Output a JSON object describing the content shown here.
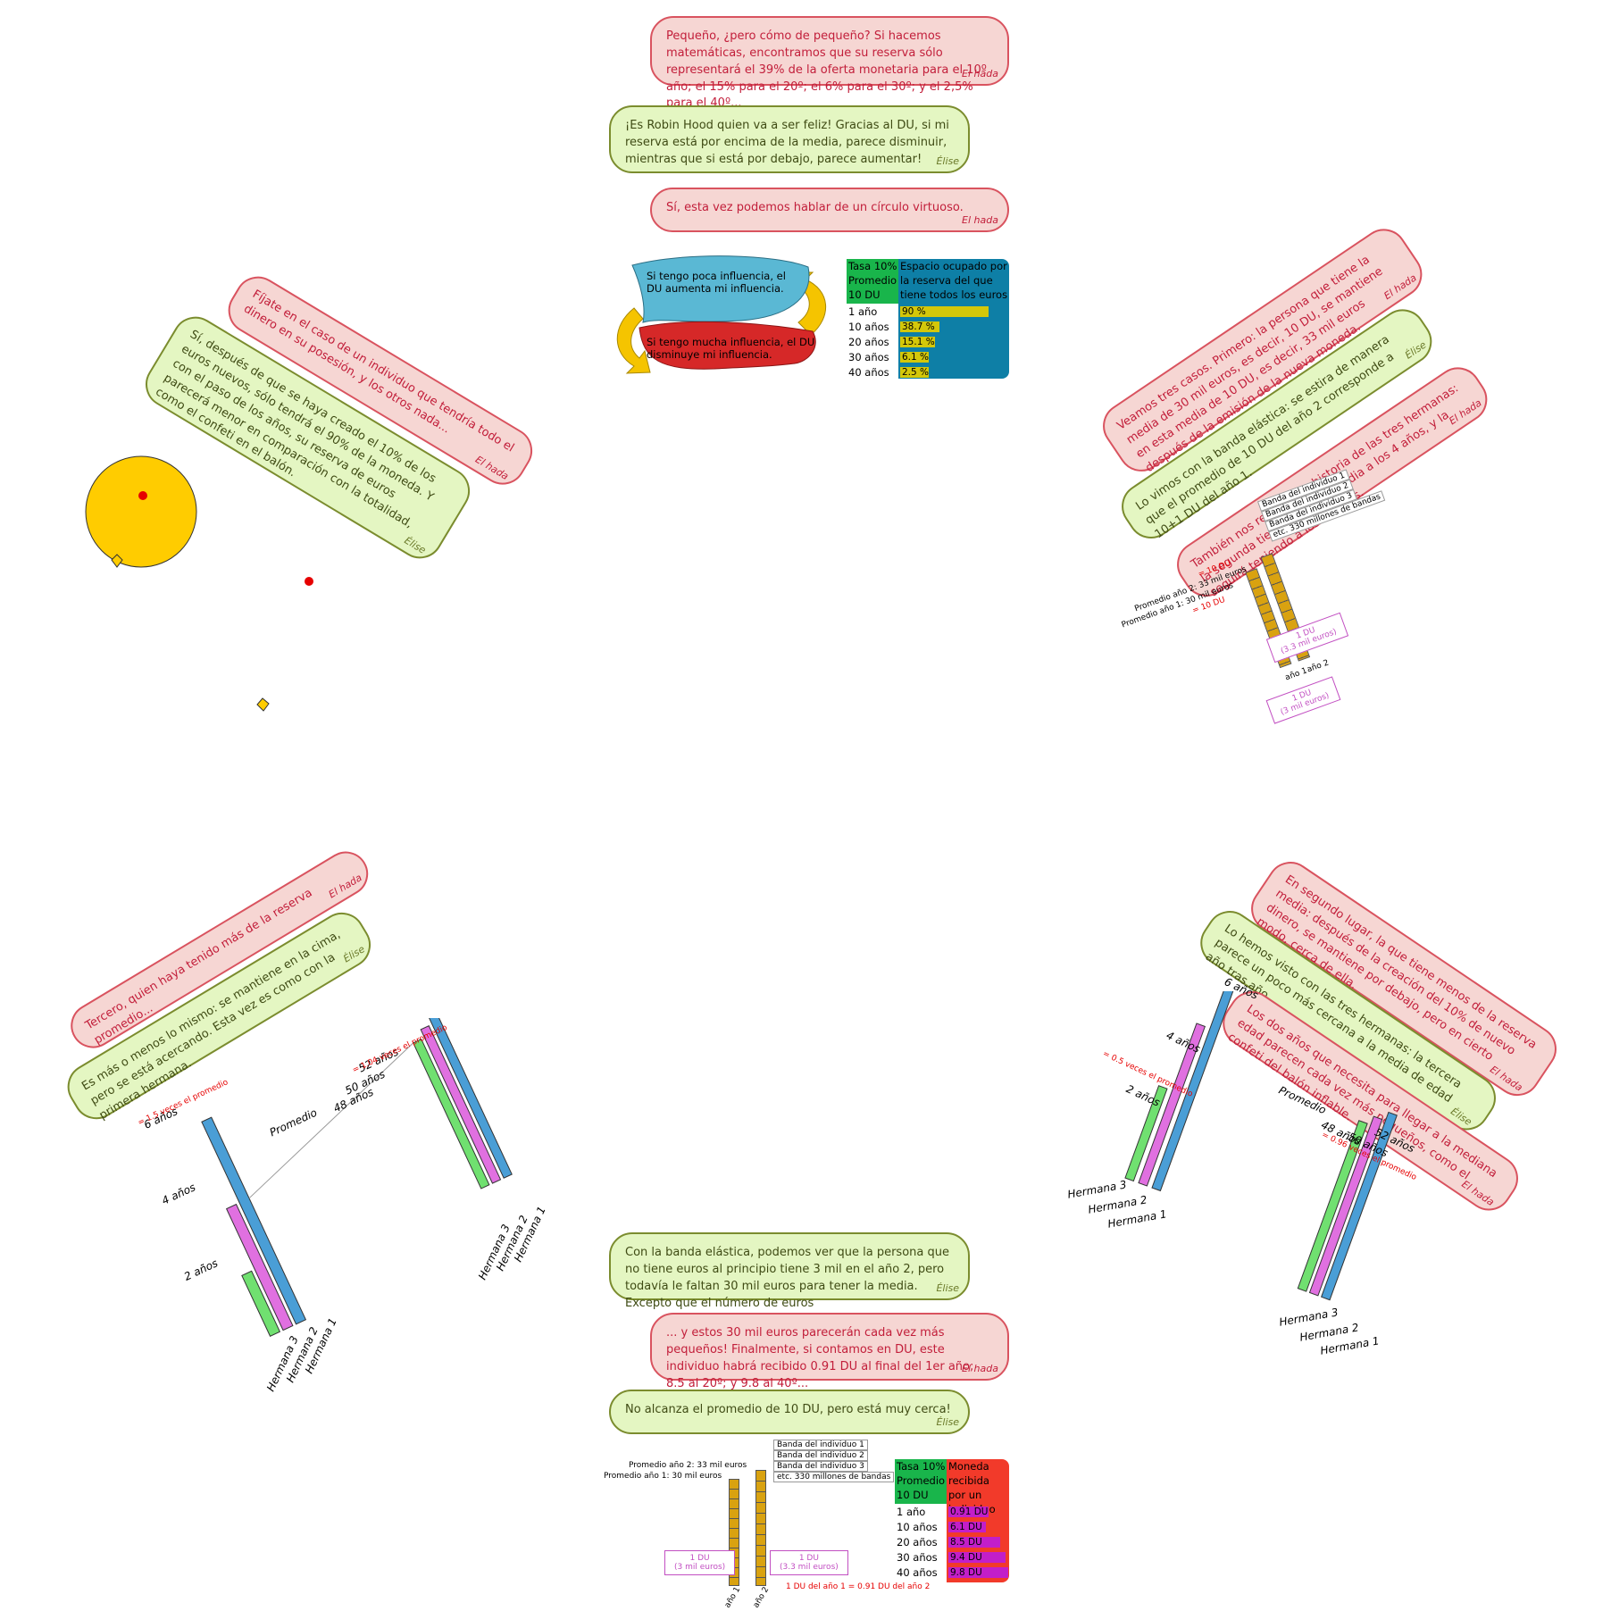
{
  "bubbles": {
    "top1": {
      "text": "Pequeño, ¿pero cómo de pequeño? Si hacemos matemáticas, encontramos que su reserva sólo representará el 39% de la oferta monetaria para el 10º año; el 15% para el 20º; el 6% para el 30º; y el 2,5% para el 40º...",
      "sig": "El hada"
    },
    "top2": {
      "text": "¡Es Robin Hood quien va a ser feliz! Gracias al DU, si mi reserva está por encima de la media, parece disminuir, mientras que si está por debajo, parece aumentar!",
      "sig": "Élise"
    },
    "top3": {
      "text": "Sí, esta vez podemos hablar de un círculo virtuoso.",
      "sig": "El hada"
    },
    "left1": {
      "text": "Fíjate en el caso de un individuo que tendría todo el dinero en su posesión, y los otros nada...",
      "sig": "El hada"
    },
    "left2": {
      "text": "Sí, después de que se haya creado el 10% de los euros nuevos, sólo tendrá el 90% de la moneda. Y con el paso de los años, su reserva de euros parecerá menor en comparación con la totalidad, como el confeti en el balón.",
      "sig": "Élise"
    },
    "right1": {
      "text": "Veamos tres casos. Primero: la persona que tiene la media de 30 mil euros, es decir, 10 DU, se mantiene en esta media de 10 DU, es decir, 33 mil euros después de la emisión de la nueva moneda.",
      "sig": "El hada"
    },
    "right2": {
      "text": "Lo vimos con la banda elástica: se estira de manera que el promedio de 10 DU del año 2 corresponde a 10+1 DU del año 1.",
      "sig": "Élise"
    },
    "right3": {
      "text": "También nos recuerda la historia de las tres hermanas: la segunda tiene una edad media a los 4 años, y la seguirá teniendo a los 50 años.",
      "sig": "El hada"
    },
    "bl1": {
      "text": "Tercero, quien haya tenido más de la reserva promedio...",
      "sig": "El hada"
    },
    "bl2": {
      "text": "Es más o menos lo mismo: se mantiene en la cima, pero se está acercando. Esta vez es como con la primera hermana.",
      "sig": "Élise"
    },
    "br1": {
      "text": "En segundo lugar, la que tiene menos de la reserva media: después de la creación del 10% de nuevo dinero, se mantiene por debajo, pero en cierto modo, cerca de ella.",
      "sig": "El hada"
    },
    "br2": {
      "text": "Lo hemos visto con las tres hermanas: la tercera parece un poco más cercana a la media de edad año tras año.",
      "sig": "Élise"
    },
    "br3": {
      "text": "Los dos años que necesita para llegar a la mediana edad parecen cada vez más pequeños, como el confeti del balón inflable.",
      "sig": "El hada"
    },
    "bot1": {
      "text": "Con la banda elástica, podemos ver que la persona que no tiene euros al principio tiene 3 mil en el año 2, pero todavía le faltan 30 mil euros para tener la media. Excepto que el número de euros",
      "sig": "Élise"
    },
    "bot2": {
      "text": "... y estos 30 mil euros parecerán cada vez más pequeños! Finalmente, si contamos en DU, este individuo habrá recibido 0.91 DU al final del 1er año; 8.5 al 20º; y 9.8 al 40º...",
      "sig": "El hada"
    },
    "bot3": {
      "text": "No alcanza el promedio de 10 DU, pero está muy cerca!",
      "sig": "Élise"
    }
  },
  "cycle": {
    "top": "Si tengo poca influencia, el DU aumenta mi influencia.",
    "bottom": "Si tengo mucha influencia, el DU disminuye mi influencia."
  },
  "table1": {
    "h1": "Tasa 10% Promedio 10 DU",
    "h2": "Espacio ocupado por la reserva del que tiene todos los euros",
    "rows": [
      {
        "label": "1 año",
        "value": "90 %",
        "pct": 90
      },
      {
        "label": "10 años",
        "value": "38.7 %",
        "pct": 38.7
      },
      {
        "label": "20 años",
        "value": "15.1 %",
        "pct": 15.1
      },
      {
        "label": "30 años",
        "value": "6.1 %",
        "pct": 6.1
      },
      {
        "label": "40 años",
        "value": "2.5 %",
        "pct": 2.5
      }
    ]
  },
  "table2": {
    "h1": "Tasa 10% Promedio 10 DU",
    "h2": "Moneda recibida por un individuo",
    "rows": [
      {
        "label": "1 año",
        "value": "0.91 DU",
        "du": 0.91
      },
      {
        "label": "10 años",
        "value": "6.1 DU",
        "du": 6.1
      },
      {
        "label": "20 años",
        "value": "8.5 DU",
        "du": 8.5
      },
      {
        "label": "30 años",
        "value": "9.4 DU",
        "du": 9.4
      },
      {
        "label": "40 años",
        "value": "9.8 DU",
        "du": 9.8
      }
    ]
  },
  "band": {
    "prom2": "Promedio año 2: 33 mil euros",
    "prom1": "Promedio año 1: 30 mil euros",
    "eq10a": "= 10 DU",
    "eq10b": "= 10 DU",
    "b1": "Banda del individuo 1",
    "b2": "Banda del individuo 2",
    "b3": "Banda del individuo 3",
    "b4": "etc. 330 millones de bandas",
    "du1": "1 DU",
    "du1e": "(3 mil euros)",
    "du2": "1 DU",
    "du2e": "(3.3 mil euros)",
    "y1": "año 1",
    "y2": "año 2",
    "note": "1 DU del año 1 = 0.91 DU del año 2"
  },
  "sisters": {
    "h1": "Hermana 1",
    "h2": "Hermana 2",
    "h3": "Hermana 3",
    "a6": "6 años",
    "a4": "4 años",
    "a2": "2 años",
    "a52": "52 años",
    "a50": "50 años",
    "a48": "48 años",
    "prom": "Promedio",
    "r15": "= 1.5 veces el promedio",
    "r104": "= 1.04 veces el promedio",
    "r05": "= 0.5 veces el promedio",
    "r096": "= 0.96 veces el promedio"
  },
  "colors": {
    "pink": "#f6d6d3",
    "green": "#e4f6c2",
    "du_yellow": "#d4c70a",
    "du_purple": "#c21ec9",
    "table_blue": "#0e7fa6",
    "table_green": "#19b54b",
    "table_red": "#f23a2a"
  }
}
